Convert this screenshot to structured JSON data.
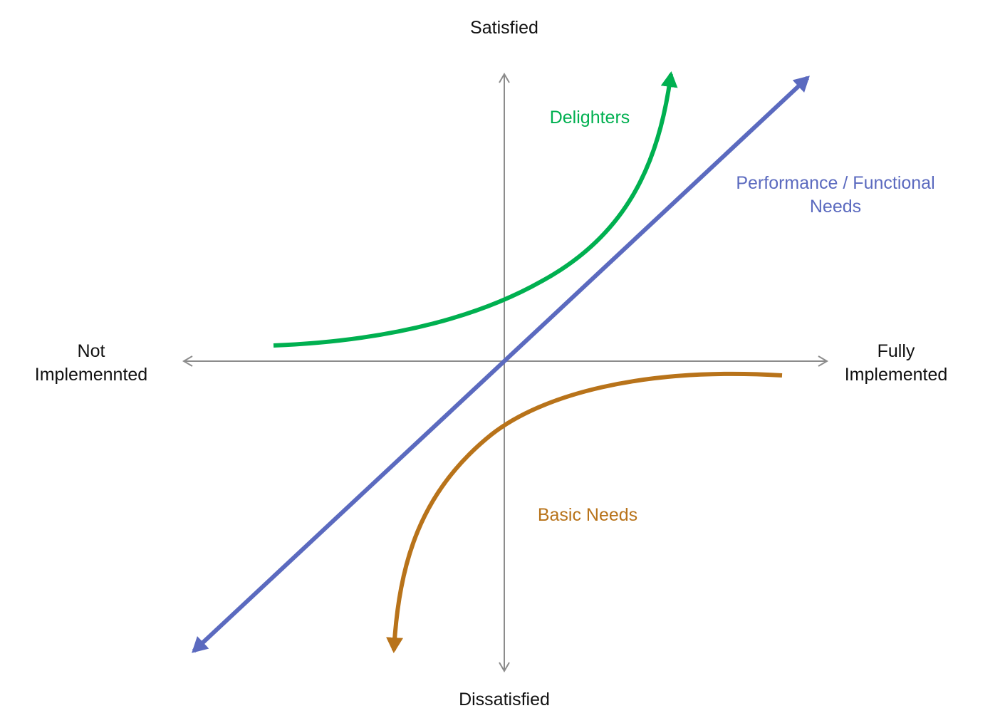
{
  "axes": {
    "top_label": "Satisfied",
    "bottom_label": "Dissatisfied",
    "left_label_line1": "Not",
    "left_label_line2": "Implemennted",
    "right_label_line1": "Fully",
    "right_label_line2": "Implemented"
  },
  "curves": {
    "delighters": {
      "label": "Delighters",
      "color": "#00b050"
    },
    "performance": {
      "label_line1": "Performance / Functional",
      "label_line2": "Needs",
      "color": "#5b6abf"
    },
    "basic": {
      "label": "Basic Needs",
      "color": "#b8731a"
    }
  },
  "colors": {
    "axis": "#8c8c8c",
    "text": "#111111"
  }
}
